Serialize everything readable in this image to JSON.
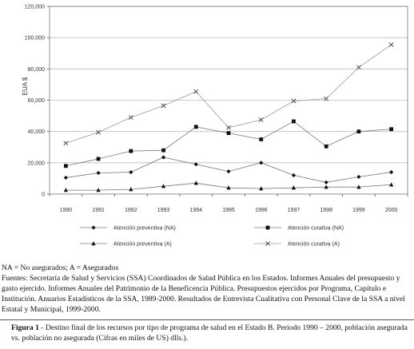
{
  "chart_data": {
    "type": "line",
    "title": "",
    "xlabel": "",
    "ylabel": "EUA $",
    "ylim": [
      0,
      120000
    ],
    "yticks": [
      0,
      20000,
      40000,
      60000,
      80000,
      100000,
      120000
    ],
    "ytick_labels": [
      "0",
      "20,000",
      "40,000",
      "60,000",
      "80,000",
      "100,000",
      "120,000"
    ],
    "categories": [
      "1990",
      "1991",
      "1992",
      "1993",
      "1994",
      "1995",
      "1996",
      "1997",
      "1998",
      "1999",
      "2000"
    ],
    "grid": "horizontal",
    "legend_position": "bottom",
    "series": [
      {
        "name": "Atención preventiva (NA)",
        "marker": "diamond",
        "values": [
          10500,
          13500,
          14000,
          23500,
          19000,
          14500,
          20000,
          12000,
          7500,
          11000,
          14000
        ]
      },
      {
        "name": "Atención curativa (NA)",
        "marker": "square",
        "values": [
          18000,
          22500,
          27500,
          28000,
          43000,
          39000,
          35000,
          46500,
          30500,
          40000,
          41500
        ]
      },
      {
        "name": "Atención preventiva (A)",
        "marker": "triangle",
        "values": [
          2500,
          2500,
          3000,
          5000,
          7000,
          4000,
          3500,
          4000,
          4500,
          4500,
          6000
        ]
      },
      {
        "name": "Atención curativa (A)",
        "marker": "x",
        "values": [
          32500,
          39500,
          49000,
          56500,
          65500,
          42500,
          47500,
          59500,
          61000,
          81000,
          95500
        ]
      }
    ]
  },
  "notes": {
    "abbrev": "NA = No asegurados; A = Asegurados",
    "sources": "Fuentes: Secretaría de Salud y Servicios (SSA) Coordinados de Salud Pública en los Estados. Informes Anuales del presupuesto y gasto ejercido. Informes Anuales del Patrimonio de la Beneficencia Pública. Presupuestos ejercidos por Programa, Capítulo e Institución. Anuarios Estadísticos de la SSA, 1989-2000. Resultados de Entrevista Cualitativa con Personal Clave de la SSA a nivel Estatal y Municipal, 1999-2000."
  },
  "caption": {
    "label": "Figura 1",
    "text": " - Destino final de los recursos por tipo de programa de salud en el Estado B. Periodo 1990 – 2000, población asegurada vs. población no asegurada (Cifras en miles de US) dlls.)."
  }
}
